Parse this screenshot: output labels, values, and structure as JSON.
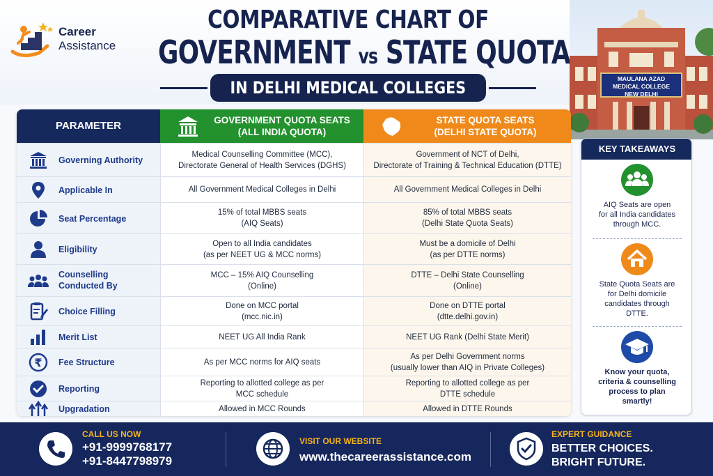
{
  "brand": {
    "line1": "Career",
    "line2": "Assistance"
  },
  "title": {
    "line1": "COMPARATIVE CHART OF",
    "line2_a": "GOVERNMENT ",
    "line2_vs": "vs",
    "line2_b": " STATE QUOTA SEATS",
    "subtitle": "IN DELHI MEDICAL COLLEGES"
  },
  "building_sign": {
    "line1": "MAULANA AZAD",
    "line2": "MEDICAL COLLEGE",
    "line3": "NEW DELHI"
  },
  "table": {
    "headers": {
      "parameter": "PARAMETER",
      "government_line1": "GOVERNMENT QUOTA SEATS",
      "government_line2": "(ALL INDIA QUOTA)",
      "state_line1": "STATE QUOTA SEATS",
      "state_line2": "(DELHI STATE QUOTA)"
    },
    "rows": [
      {
        "icon": "building-columns-icon",
        "parameter": "Governing Authority",
        "government": "Medical Counselling Committee (MCC),\nDirectorate General of Health Services (DGHS)",
        "state": "Government of NCT of Delhi,\nDirectorate of Training & Technical Education (DTTE)"
      },
      {
        "icon": "location-pin-icon",
        "parameter": "Applicable In",
        "government": "All Government Medical Colleges in Delhi",
        "state": "All Government Medical Colleges in Delhi"
      },
      {
        "icon": "pie-chart-icon",
        "parameter": "Seat Percentage",
        "government": "15% of total MBBS seats\n(AIQ Seats)",
        "state": "85% of total MBBS seats\n(Delhi State Quota Seats)"
      },
      {
        "icon": "person-icon",
        "parameter": "Eligibility",
        "government": "Open to all India candidates\n(as per NEET UG & MCC norms)",
        "state": "Must be a domicile of Delhi\n(as per DTTE norms)"
      },
      {
        "icon": "group-icon",
        "parameter": "Counselling\nConducted By",
        "government": "MCC – 15% AIQ Counselling\n(Online)",
        "state": "DTTE – Delhi State Counselling\n(Online)"
      },
      {
        "icon": "clipboard-edit-icon",
        "parameter": "Choice Filling",
        "government": "Done on MCC portal\n(mcc.nic.in)",
        "state": "Done on DTTE portal\n(dtte.delhi.gov.in)"
      },
      {
        "icon": "bar-chart-icon",
        "parameter": "Merit List",
        "government": "NEET UG All India Rank",
        "state": "NEET UG Rank (Delhi State Merit)"
      },
      {
        "icon": "rupee-icon",
        "parameter": "Fee Structure",
        "government": "As per MCC norms for AIQ seats",
        "state": "As per Delhi Government norms\n(usually lower than AIQ in Private Colleges)"
      },
      {
        "icon": "check-circle-icon",
        "parameter": "Reporting",
        "government": "Reporting to allotted college as per\nMCC schedule",
        "state": "Reporting to allotted college as per\nDTTE schedule"
      },
      {
        "icon": "upgrade-arrows-icon",
        "parameter": "Upgradation",
        "government": "Allowed in MCC Rounds",
        "state": "Allowed in DTTE Rounds"
      }
    ]
  },
  "key_takeaways": {
    "title": "KEY TAKEAWAYS",
    "items": [
      {
        "icon": "group-icon",
        "color": "#23912d",
        "text": "AIQ Seats are open\nfor all India candidates\nthrough MCC."
      },
      {
        "icon": "home-icon",
        "color": "#ef8a1a",
        "text": "State Quota Seats are\nfor Delhi domicile\ncandidates through\nDTTE."
      },
      {
        "icon": "graduation-cap-icon",
        "color": "#1e4aa8",
        "text": "Know your quota,\ncriteria & counselling\nprocess to plan\nsmartly!"
      }
    ]
  },
  "footer": {
    "call_label": "CALL US NOW",
    "phone1": "+91-9999768177",
    "phone2": "+91-8447798979",
    "web_label": "VISIT OUR WEBSITE",
    "website": "www.thecareerassistance.com",
    "expert_label": "EXPERT GUIDANCE",
    "tagline1": "BETTER CHOICES.",
    "tagline2": "BRIGHT FUTURE."
  },
  "colors": {
    "navy": "#16295d",
    "green": "#23912d",
    "orange": "#ef8a1a",
    "gold": "#f6b21a"
  }
}
